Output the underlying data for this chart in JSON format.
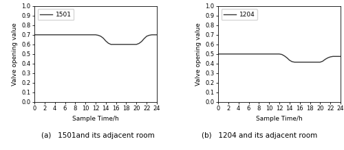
{
  "subplot1": {
    "label": "1501",
    "title_a": "(a)   1501and its adjacent room",
    "x": [
      0,
      1,
      2,
      3,
      4,
      5,
      6,
      7,
      8,
      9,
      10,
      11,
      12,
      12.5,
      13,
      13.5,
      14,
      14.5,
      15,
      15.5,
      16,
      17,
      18,
      19,
      20,
      20.5,
      21,
      21.5,
      22,
      22.5,
      23,
      24
    ],
    "y": [
      0.7,
      0.7,
      0.7,
      0.7,
      0.7,
      0.7,
      0.7,
      0.7,
      0.7,
      0.7,
      0.7,
      0.7,
      0.7,
      0.695,
      0.685,
      0.665,
      0.635,
      0.612,
      0.6,
      0.6,
      0.6,
      0.6,
      0.6,
      0.6,
      0.6,
      0.61,
      0.63,
      0.66,
      0.685,
      0.695,
      0.7,
      0.7
    ],
    "xlim": [
      0,
      24
    ],
    "ylim": [
      0.0,
      1.0
    ],
    "xticks": [
      0,
      2,
      4,
      6,
      8,
      10,
      12,
      14,
      16,
      18,
      20,
      22,
      24
    ],
    "yticks": [
      0.0,
      0.1,
      0.2,
      0.3,
      0.4,
      0.5,
      0.6,
      0.7,
      0.8,
      0.9,
      1.0
    ],
    "xlabel": "Sample Time/h",
    "ylabel": "Valve opening value"
  },
  "subplot2": {
    "label": "1204",
    "title_b": "(b)   1204 and its adjacent room",
    "x": [
      0,
      1,
      2,
      3,
      4,
      5,
      6,
      7,
      8,
      9,
      10,
      11,
      12,
      12.5,
      13,
      13.5,
      14,
      14.5,
      15,
      15.5,
      16,
      17,
      18,
      19,
      20,
      20.5,
      21,
      21.5,
      22,
      22.5,
      23,
      24
    ],
    "y": [
      0.5,
      0.5,
      0.5,
      0.5,
      0.5,
      0.5,
      0.5,
      0.5,
      0.5,
      0.5,
      0.5,
      0.5,
      0.5,
      0.495,
      0.48,
      0.46,
      0.435,
      0.42,
      0.415,
      0.415,
      0.415,
      0.415,
      0.415,
      0.415,
      0.415,
      0.425,
      0.445,
      0.46,
      0.47,
      0.475,
      0.475,
      0.475
    ],
    "xlim": [
      0,
      24
    ],
    "ylim": [
      0.0,
      1.0
    ],
    "xticks": [
      0,
      2,
      4,
      6,
      8,
      10,
      12,
      14,
      16,
      18,
      20,
      22,
      24
    ],
    "yticks": [
      0.0,
      0.1,
      0.2,
      0.3,
      0.4,
      0.5,
      0.6,
      0.7,
      0.8,
      0.9,
      1.0
    ],
    "xlabel": "Sample Time/h",
    "ylabel": "Valve opening value"
  },
  "line_color": "#333333",
  "line_width": 1.0,
  "bg_color": "#ffffff",
  "font_size_label": 6.5,
  "font_size_tick": 6,
  "font_size_caption": 7.5,
  "font_size_legend": 6.5
}
